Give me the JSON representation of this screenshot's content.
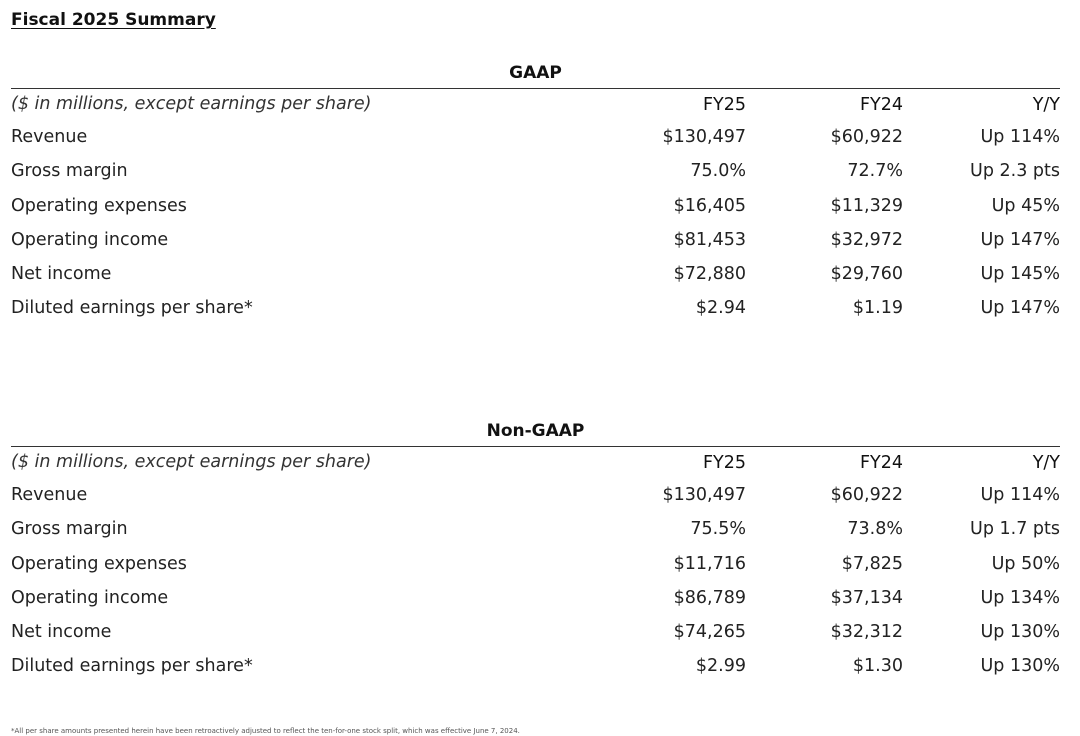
{
  "title": "Fiscal 2025 Summary",
  "units_note": "($ in millions, except earnings per share)",
  "columns": {
    "fy25": "FY25",
    "fy24": "FY24",
    "yy": "Y/Y"
  },
  "gaap": {
    "heading": "GAAP",
    "rows": [
      {
        "label": "Revenue",
        "fy25": "$130,497",
        "fy24": "$60,922",
        "yy": "Up 114%"
      },
      {
        "label": "Gross margin",
        "fy25": "75.0%",
        "fy24": "72.7%",
        "yy": "Up 2.3 pts"
      },
      {
        "label": "Operating expenses",
        "fy25": "$16,405",
        "fy24": "$11,329",
        "yy": "Up 45%"
      },
      {
        "label": "Operating income",
        "fy25": "$81,453",
        "fy24": "$32,972",
        "yy": "Up 147%"
      },
      {
        "label": "Net income",
        "fy25": "$72,880",
        "fy24": "$29,760",
        "yy": "Up 145%"
      },
      {
        "label": "Diluted earnings per share*",
        "fy25": "$2.94",
        "fy24": "$1.19",
        "yy": "Up 147%"
      }
    ]
  },
  "non_gaap": {
    "heading": "Non-GAAP",
    "rows": [
      {
        "label": "Revenue",
        "fy25": "$130,497",
        "fy24": "$60,922",
        "yy": "Up 114%"
      },
      {
        "label": "Gross margin",
        "fy25": "75.5%",
        "fy24": "73.8%",
        "yy": "Up 1.7 pts"
      },
      {
        "label": "Operating expenses",
        "fy25": "$11,716",
        "fy24": "$7,825",
        "yy": "Up 50%"
      },
      {
        "label": "Operating income",
        "fy25": "$86,789",
        "fy24": "$37,134",
        "yy": "Up 134%"
      },
      {
        "label": "Net income",
        "fy25": "$74,265",
        "fy24": "$32,312",
        "yy": "Up 130%"
      },
      {
        "label": "Diluted earnings per share*",
        "fy25": "$2.99",
        "fy24": "$1.30",
        "yy": "Up 130%"
      }
    ]
  },
  "footnote": "*All per share amounts presented herein have been retroactively adjusted to reflect the ten-for-one stock split, which was effective June 7, 2024."
}
